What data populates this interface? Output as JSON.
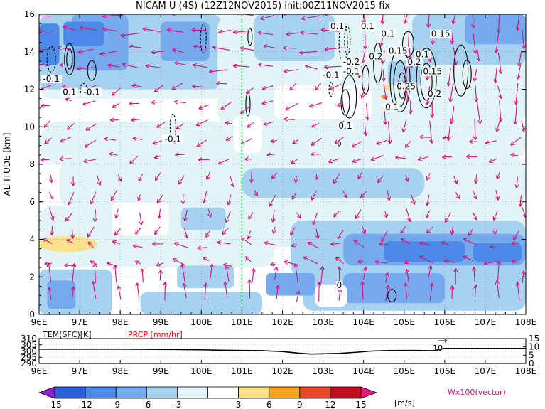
{
  "chart_data": [
    {
      "type": "heatmap",
      "title": "NICAM U (4S) (12Z12NOV2015) init:00Z11NOV2015 fix",
      "ylabel": "ALTITUDE [km]",
      "xlim": [
        96,
        108
      ],
      "ylim": [
        0,
        16
      ],
      "x_ticks": [
        "96E",
        "97E",
        "98E",
        "99E",
        "100E",
        "101E",
        "102E",
        "103E",
        "104E",
        "105E",
        "106E",
        "107E",
        "108E"
      ],
      "y_ticks": [
        "0",
        "2",
        "4",
        "6",
        "8",
        "10",
        "12",
        "14",
        "16"
      ],
      "grid": true,
      "marker_line_x": 101,
      "contour_labels": [
        {
          "text": "0.1",
          "x": 103.35,
          "y": 15.2
        },
        {
          "text": "0.1",
          "x": 104.1,
          "y": 15.2
        },
        {
          "text": "0.1",
          "x": 104.6,
          "y": 14.8
        },
        {
          "text": "0.15",
          "x": 105.9,
          "y": 14.8
        },
        {
          "text": "0.15",
          "x": 104.85,
          "y": 13.9
        },
        {
          "text": "0.2",
          "x": 104.3,
          "y": 13.6
        },
        {
          "text": "0.2",
          "x": 105.25,
          "y": 13.3
        },
        {
          "text": "0.1",
          "x": 105.45,
          "y": 13.7
        },
        {
          "text": "-0.2",
          "x": 103.7,
          "y": 13.3
        },
        {
          "text": "-0.1",
          "x": 103.7,
          "y": 12.8
        },
        {
          "text": "-0.1",
          "x": 103.2,
          "y": 12.6
        },
        {
          "text": "0.15",
          "x": 105.7,
          "y": 12.8
        },
        {
          "text": "0.25",
          "x": 105.05,
          "y": 12.0
        },
        {
          "text": "0.2",
          "x": 105.75,
          "y": 11.6
        },
        {
          "text": "0.1",
          "x": 104.7,
          "y": 10.9
        },
        {
          "text": "0.1",
          "x": 103.55,
          "y": 9.9
        },
        {
          "text": "-0.1",
          "x": 96.3,
          "y": 12.4
        },
        {
          "text": "0.1",
          "x": 96.75,
          "y": 11.7
        },
        {
          "text": "-0.1",
          "x": 97.3,
          "y": 11.7
        },
        {
          "text": "-0.1",
          "x": 99.3,
          "y": 9.2
        },
        {
          "text": "0",
          "x": 103.4,
          "y": 1.4
        }
      ],
      "colorbar": {
        "levels": [
          "-15",
          "-12",
          "-9",
          "-6",
          "-3",
          "3",
          "6",
          "9",
          "12",
          "15"
        ],
        "colors": [
          "#9a1fd3",
          "#2a61d9",
          "#4b8ae8",
          "#76aaee",
          "#a6d2f0",
          "#e2f4f6",
          "#ffffff",
          "#fbe28a",
          "#f7a31f",
          "#ed4527",
          "#c01020",
          "#e6187c"
        ],
        "unit": "[m/s]"
      },
      "vector_label": "Wx100(vector)"
    },
    {
      "type": "line",
      "series": [
        {
          "name": "TEM(SFC)[K]",
          "color": "#000000",
          "x": [
            96,
            97,
            98,
            99,
            100,
            100.5,
            101,
            101.5,
            102,
            102.4,
            102.7,
            103,
            103.4,
            103.8,
            104.2,
            104.6,
            105,
            105.3,
            105.55,
            105.75,
            105.85,
            106,
            107,
            108
          ],
          "values": [
            301.5,
            301.5,
            301.5,
            301.3,
            301,
            300.7,
            300.5,
            300.3,
            299.6,
            298.3,
            297.6,
            297.8,
            298.1,
            299,
            300,
            300.4,
            300.5,
            300.5,
            300.3,
            300.3,
            301.2,
            302.1,
            302.1,
            302.1
          ]
        },
        {
          "name": "PRCP [mm/hr]",
          "color": "#ff0000",
          "x": [
            96,
            108
          ],
          "values": [
            0,
            0
          ]
        }
      ],
      "xlim": [
        96,
        108
      ],
      "ylim_left": [
        290,
        310
      ],
      "ylim_right": [
        0,
        15
      ],
      "left_ticks": [
        "290",
        "295",
        "300",
        "305",
        "310"
      ],
      "right_ticks": [
        "0",
        "5",
        "10",
        "15"
      ],
      "x_ticks": [
        "96E",
        "97E",
        "98E",
        "99E",
        "100E",
        "101E",
        "102E",
        "103E",
        "104E",
        "105E",
        "106E",
        "107E",
        "108E"
      ],
      "annotation": "10"
    }
  ]
}
